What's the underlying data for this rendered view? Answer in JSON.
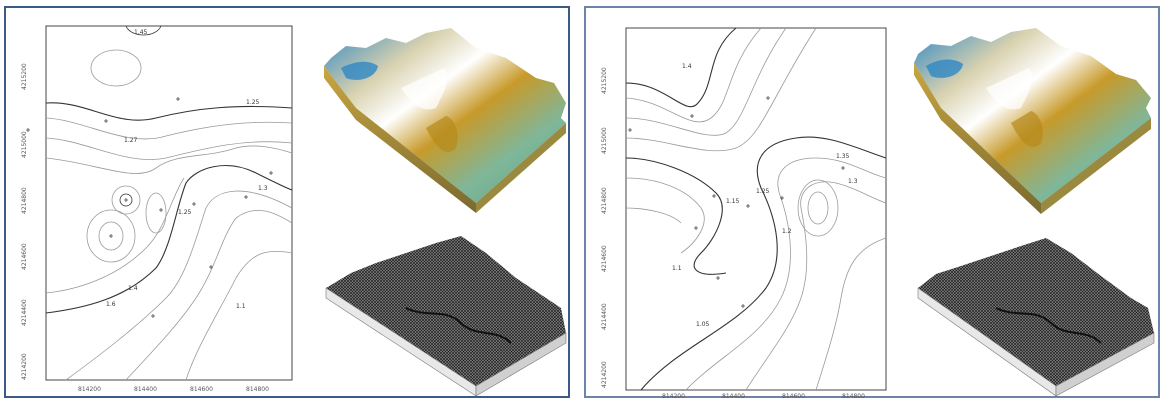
{
  "left_panel": {
    "contour_map": {
      "y_ticks": [
        "4215200",
        "4215000",
        "4214800",
        "4214600",
        "4214400",
        "4214200"
      ],
      "x_ticks": [
        "814200",
        "814400",
        "814600",
        "814800"
      ],
      "contour_labels": [
        "1.45",
        "1.25",
        "1.27",
        "1.25",
        "1.3",
        "1.4",
        "1.6",
        "1.1"
      ]
    }
  },
  "right_panel": {
    "contour_map": {
      "y_ticks": [
        "4215200",
        "4215000",
        "4214800",
        "4214600",
        "4214400",
        "4214200"
      ],
      "x_ticks": [
        "814200",
        "814400",
        "814600",
        "814800"
      ],
      "contour_labels": [
        "1.4",
        "1.35",
        "1.3",
        "1.25",
        "1.15",
        "1.2",
        "1.1",
        "1.05"
      ]
    }
  },
  "colors": {
    "frame_left": "#3b5a87",
    "frame_right": "#6d84a8",
    "surface_blue": "#3a8fc6",
    "surface_gold": "#c79a2a",
    "surface_green": "#6fae8a",
    "mesh_dark": "#2b2b2b"
  }
}
